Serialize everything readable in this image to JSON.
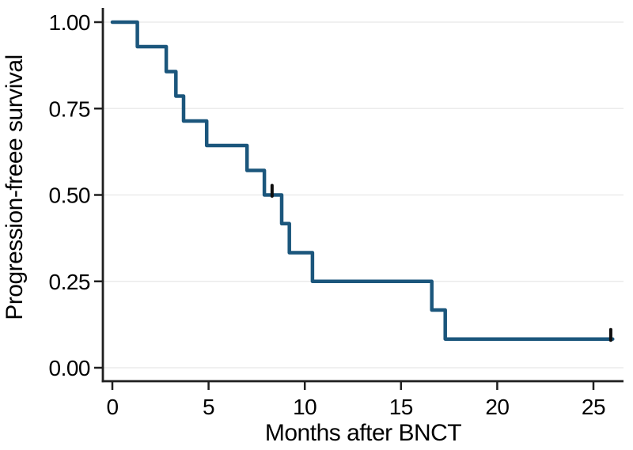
{
  "figure": {
    "background": "#ffffff"
  },
  "chart_data": {
    "type": "line",
    "subtype": "kaplan_meier_step",
    "title": "",
    "xlabel": "Months after BNCT",
    "ylabel": "Progression-freee survival",
    "xlim": [
      0,
      26
    ],
    "ylim": [
      0.0,
      1.0
    ],
    "x_ticks": {
      "values": [
        0,
        5,
        10,
        15,
        20,
        25
      ],
      "labels": [
        "0",
        "5",
        "10",
        "15",
        "20",
        "25"
      ]
    },
    "y_ticks": {
      "values": [
        0.0,
        0.25,
        0.5,
        0.75,
        1.0
      ],
      "labels": [
        "0.00",
        "0.25",
        "0.50",
        "0.75",
        "1.00"
      ]
    },
    "grid": "horizontal",
    "legend": "none",
    "series": [
      {
        "name": "progression-free-survival-curve",
        "color": "#1b567c",
        "stroke_width": 4.5,
        "points_t_s": [
          [
            0.0,
            1.0
          ],
          [
            1.3,
            0.929
          ],
          [
            2.8,
            0.857
          ],
          [
            3.3,
            0.786
          ],
          [
            3.7,
            0.714
          ],
          [
            4.9,
            0.643
          ],
          [
            7.0,
            0.571
          ],
          [
            7.9,
            0.5
          ],
          [
            8.8,
            0.417
          ],
          [
            9.2,
            0.333
          ],
          [
            10.4,
            0.25
          ],
          [
            16.6,
            0.167
          ],
          [
            17.3,
            0.083
          ]
        ],
        "end_t": 26.0,
        "censor_marks_t_s": [
          [
            8.3,
            0.5
          ],
          [
            25.9,
            0.083
          ]
        ]
      }
    ],
    "colors": {
      "axis": "#1f1f1f",
      "grid": "#ebebeb",
      "tick_text": "#000000",
      "censor": "#0e0e0e"
    }
  }
}
